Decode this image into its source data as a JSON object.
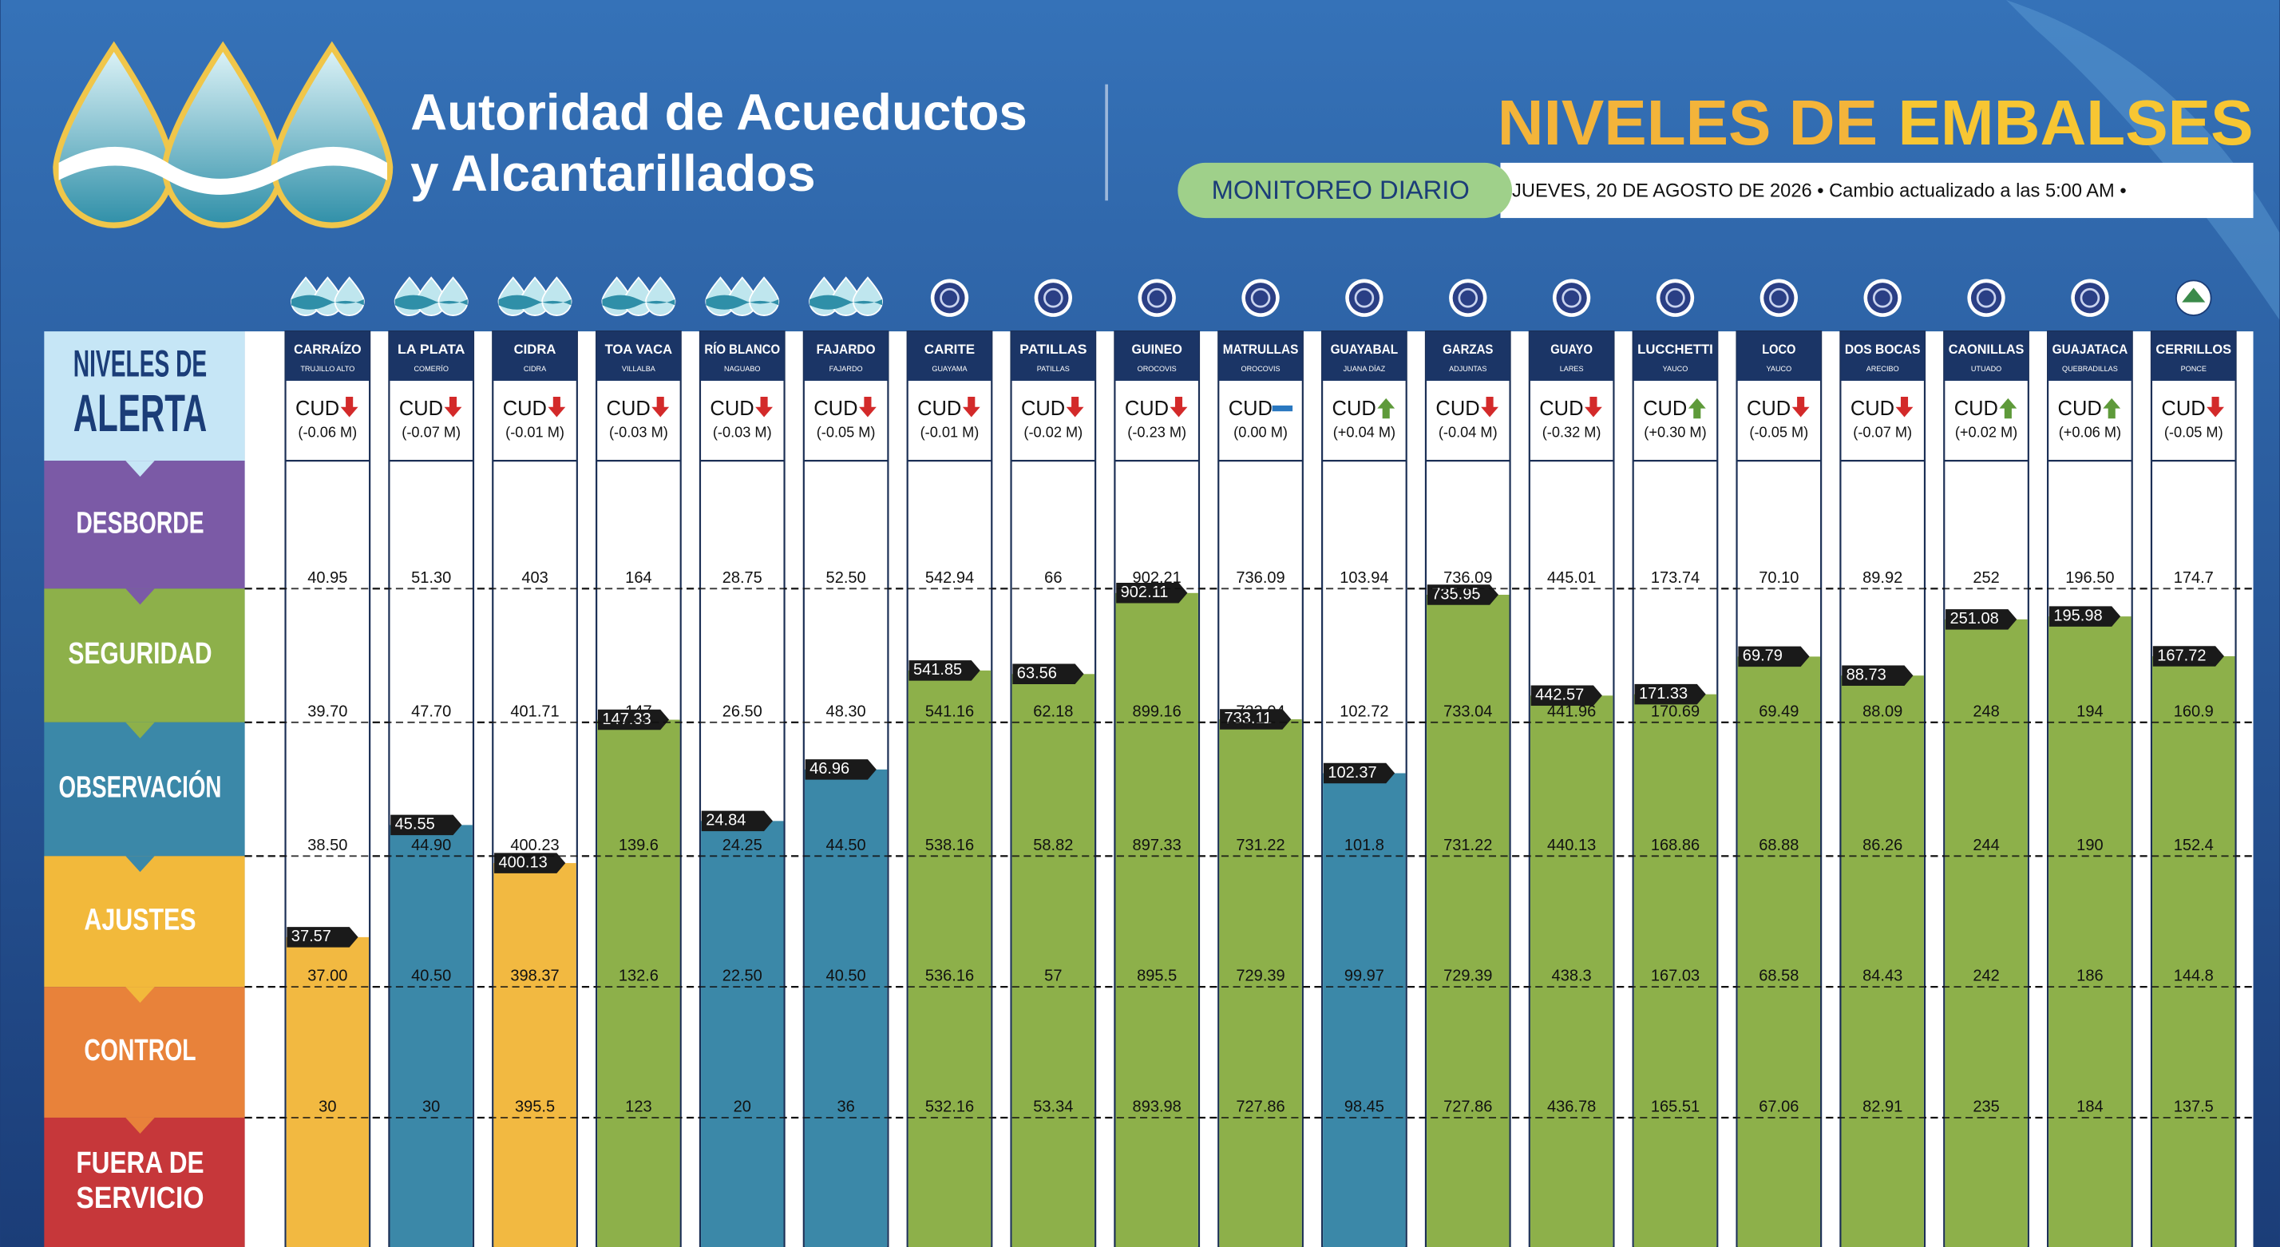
{
  "header": {
    "org_name": [
      "Autoridad de Acueductos",
      "y Alcantarillados"
    ],
    "title_part1": "NIVELES DE",
    "title_part2": "EMBALSES",
    "badge": "MONITOREO DIARIO",
    "date_line": "JUEVES, 20 DE AGOSTO DE 2026 • Cambio actualizado a las 5:00 AM •"
  },
  "alert_header": [
    "NIVELES DE",
    "ALERTA"
  ],
  "alert_levels": [
    {
      "lines": [
        "DESBORDE"
      ],
      "color": "#7b5aa6"
    },
    {
      "lines": [
        "SEGURIDAD"
      ],
      "color": "#8db04a"
    },
    {
      "lines": [
        "OBSERVACIÓN"
      ],
      "color": "#3b88a8"
    },
    {
      "lines": [
        "AJUSTES"
      ],
      "color": "#f2b93b"
    },
    {
      "lines": [
        "CONTROL"
      ],
      "color": "#e8823a"
    },
    {
      "lines": [
        "FUERA DE",
        "SERVICIO"
      ],
      "color": "#c6373a"
    }
  ],
  "cud_label": "CUD",
  "reservoirs": [
    {
      "name": "CARRAÍZO",
      "town": "TRUJILLO ALTO",
      "icon": "aaa",
      "trend": "down",
      "change": "(-0.06 M)",
      "thresholds": [
        "40.95",
        "39.70",
        "38.50",
        "37.00",
        "30"
      ],
      "level": "37.57",
      "color": "#f2b941"
    },
    {
      "name": "LA PLATA",
      "town": "COMERÍO",
      "icon": "aaa",
      "trend": "down",
      "change": "(-0.07 M)",
      "thresholds": [
        "51.30",
        "47.70",
        "44.90",
        "40.50",
        "30"
      ],
      "level": "45.55",
      "color": "#3b88a8"
    },
    {
      "name": "CIDRA",
      "town": "CIDRA",
      "icon": "aaa",
      "trend": "down",
      "change": "(-0.01 M)",
      "thresholds": [
        "403",
        "401.71",
        "400.23",
        "398.37",
        "395.5"
      ],
      "level": "400.13",
      "color": "#f2b941"
    },
    {
      "name": "TOA VACA",
      "town": "VILLALBA",
      "icon": "aaa",
      "trend": "down",
      "change": "(-0.03 M)",
      "thresholds": [
        "164",
        "147",
        "139.6",
        "132.6",
        "123"
      ],
      "level": "147.33",
      "color": "#8db04a"
    },
    {
      "name": "RÍO BLANCO",
      "town": "NAGUABO",
      "icon": "aaa",
      "trend": "down",
      "change": "(-0.03 M)",
      "thresholds": [
        "28.75",
        "26.50",
        "24.25",
        "22.50",
        "20"
      ],
      "level": "24.84",
      "color": "#3b88a8"
    },
    {
      "name": "FAJARDO",
      "town": "FAJARDO",
      "icon": "aaa",
      "trend": "down",
      "change": "(-0.05 M)",
      "thresholds": [
        "52.50",
        "48.30",
        "44.50",
        "40.50",
        "36"
      ],
      "level": "46.96",
      "color": "#3b88a8"
    },
    {
      "name": "CARITE",
      "town": "GUAYAMA",
      "icon": "seal",
      "trend": "down",
      "change": "(-0.01 M)",
      "thresholds": [
        "542.94",
        "541.16",
        "538.16",
        "536.16",
        "532.16"
      ],
      "level": "541.85",
      "color": "#8db04a"
    },
    {
      "name": "PATILLAS",
      "town": "PATILLAS",
      "icon": "seal",
      "trend": "down",
      "change": "(-0.02 M)",
      "thresholds": [
        "66",
        "62.18",
        "58.82",
        "57",
        "53.34"
      ],
      "level": "63.56",
      "color": "#8db04a"
    },
    {
      "name": "GUINEO",
      "town": "OROCOVIS",
      "icon": "seal",
      "trend": "down",
      "change": "(-0.23 M)",
      "thresholds": [
        "902.21",
        "899.16",
        "897.33",
        "895.5",
        "893.98"
      ],
      "level": "902.11",
      "color": "#8db04a"
    },
    {
      "name": "MATRULLAS",
      "town": "OROCOVIS",
      "icon": "seal",
      "trend": "flat",
      "change": "(0.00 M)",
      "thresholds": [
        "736.09",
        "733.04",
        "731.22",
        "729.39",
        "727.86"
      ],
      "level": "733.11",
      "color": "#8db04a"
    },
    {
      "name": "GUAYABAL",
      "town": "JUANA DÍAZ",
      "icon": "seal",
      "trend": "up",
      "change": "(+0.04 M)",
      "thresholds": [
        "103.94",
        "102.72",
        "101.8",
        "99.97",
        "98.45"
      ],
      "level": "102.37",
      "color": "#3b88a8"
    },
    {
      "name": "GARZAS",
      "town": "ADJUNTAS",
      "icon": "seal",
      "trend": "down",
      "change": "(-0.04 M)",
      "thresholds": [
        "736.09",
        "733.04",
        "731.22",
        "729.39",
        "727.86"
      ],
      "level": "735.95",
      "color": "#8db04a"
    },
    {
      "name": "GUAYO",
      "town": "LARES",
      "icon": "seal",
      "trend": "down",
      "change": "(-0.32 M)",
      "thresholds": [
        "445.01",
        "441.96",
        "440.13",
        "438.3",
        "436.78"
      ],
      "level": "442.57",
      "color": "#8db04a"
    },
    {
      "name": "LUCCHETTI",
      "town": "YAUCO",
      "icon": "seal",
      "trend": "up",
      "change": "(+0.30 M)",
      "thresholds": [
        "173.74",
        "170.69",
        "168.86",
        "167.03",
        "165.51"
      ],
      "level": "171.33",
      "color": "#8db04a"
    },
    {
      "name": "LOCO",
      "town": "YAUCO",
      "icon": "seal",
      "trend": "down",
      "change": "(-0.05 M)",
      "thresholds": [
        "70.10",
        "69.49",
        "68.88",
        "68.58",
        "67.06"
      ],
      "level": "69.79",
      "color": "#8db04a"
    },
    {
      "name": "DOS BOCAS",
      "town": "ARECIBO",
      "icon": "seal",
      "trend": "down",
      "change": "(-0.07 M)",
      "thresholds": [
        "89.92",
        "88.09",
        "86.26",
        "84.43",
        "82.91"
      ],
      "level": "88.73",
      "color": "#8db04a"
    },
    {
      "name": "CAONILLAS",
      "town": "UTUADO",
      "icon": "seal",
      "trend": "up",
      "change": "(+0.02 M)",
      "thresholds": [
        "252",
        "248",
        "244",
        "242",
        "235"
      ],
      "level": "251.08",
      "color": "#8db04a"
    },
    {
      "name": "GUAJATACA",
      "town": "QUEBRADILLAS",
      "icon": "seal",
      "trend": "up",
      "change": "(+0.06 M)",
      "thresholds": [
        "196.50",
        "194",
        "190",
        "186",
        "184"
      ],
      "level": "195.98",
      "color": "#8db04a"
    },
    {
      "name": "CERRILLOS",
      "town": "PONCE",
      "icon": "drna",
      "trend": "down",
      "change": "(-0.05 M)",
      "thresholds": [
        "174.7",
        "160.9",
        "152.4",
        "144.8",
        "137.5"
      ],
      "level": "167.72",
      "color": "#8db04a"
    }
  ]
}
